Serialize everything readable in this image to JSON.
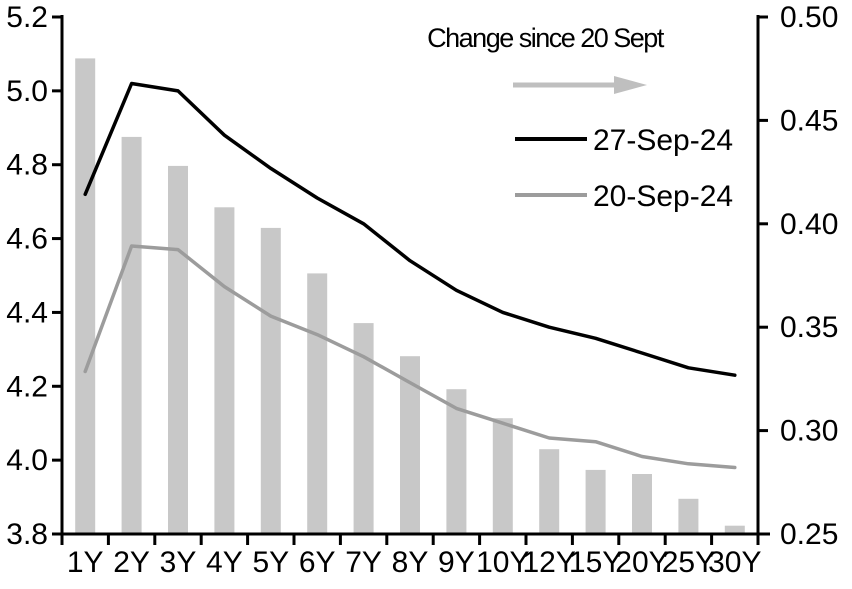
{
  "chart_data": {
    "type": "combo",
    "categories": [
      "1Y",
      "2Y",
      "3Y",
      "4Y",
      "5Y",
      "6Y",
      "7Y",
      "8Y",
      "9Y",
      "10Y",
      "12Y",
      "15Y",
      "20Y",
      "25Y",
      "30Y"
    ],
    "series": [
      {
        "name": "Change since 20 Sept",
        "type": "bar",
        "axis": "right",
        "color": "#c8c8c8",
        "values": [
          0.48,
          0.442,
          0.428,
          0.408,
          0.398,
          0.376,
          0.352,
          0.336,
          0.32,
          0.306,
          0.291,
          0.281,
          0.279,
          0.267,
          0.254
        ]
      },
      {
        "name": "27-Sep-24",
        "type": "line",
        "axis": "left",
        "color": "#000000",
        "values": [
          4.72,
          5.02,
          5.0,
          4.88,
          4.79,
          4.71,
          4.64,
          4.54,
          4.46,
          4.4,
          4.36,
          4.33,
          4.29,
          4.25,
          4.23
        ]
      },
      {
        "name": "20-Sep-24",
        "type": "line",
        "axis": "left",
        "color": "#9c9c9c",
        "values": [
          4.24,
          4.58,
          4.57,
          4.47,
          4.39,
          4.34,
          4.28,
          4.21,
          4.14,
          4.1,
          4.06,
          4.05,
          4.01,
          3.99,
          3.98
        ]
      }
    ],
    "left_axis": {
      "min": 3.8,
      "max": 5.2,
      "tick_labels": [
        "5.2",
        "5.0",
        "4.8",
        "4.6",
        "4.4",
        "4.2",
        "4.0",
        "3.8"
      ]
    },
    "right_axis": {
      "min": 0.25,
      "max": 0.5,
      "tick_labels": [
        "0.50",
        "0.45",
        "0.40",
        "0.35",
        "0.30",
        "0.25"
      ]
    },
    "annotation": {
      "label": "Change since 20 Sept",
      "arrow_icon": "right-arrow",
      "arrow_color": "#bfbfbf"
    },
    "legend": [
      {
        "label": "27-Sep-24",
        "color": "#000000"
      },
      {
        "label": "20-Sep-24",
        "color": "#9c9c9c"
      }
    ],
    "legend_position": "top-right-inside",
    "grid": false,
    "title": "",
    "xlabel": "",
    "ylabel": ""
  }
}
